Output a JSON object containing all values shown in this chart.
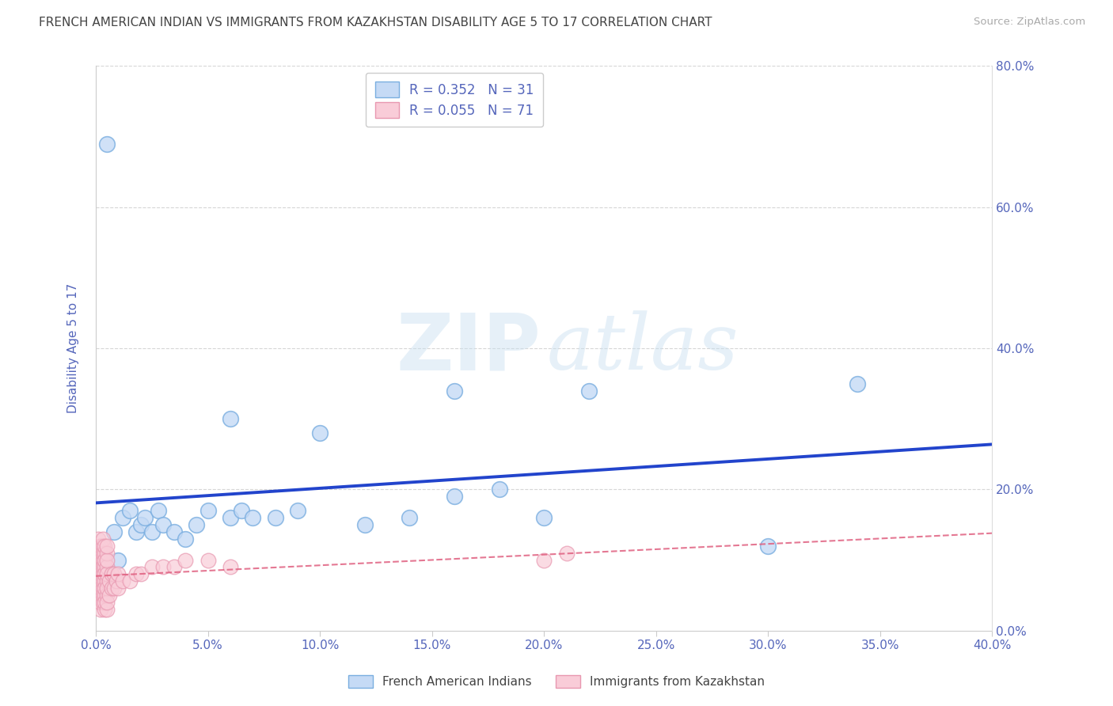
{
  "title": "FRENCH AMERICAN INDIAN VS IMMIGRANTS FROM KAZAKHSTAN DISABILITY AGE 5 TO 17 CORRELATION CHART",
  "source": "Source: ZipAtlas.com",
  "ylabel": "Disability Age 5 to 17",
  "xlim": [
    0.0,
    0.4
  ],
  "ylim": [
    0.0,
    0.8
  ],
  "xticks": [
    0.0,
    0.05,
    0.1,
    0.15,
    0.2,
    0.25,
    0.3,
    0.35,
    0.4
  ],
  "ytick_labels_right": [
    "0.0%",
    "20.0%",
    "40.0%",
    "60.0%",
    "80.0%"
  ],
  "ytick_vals": [
    0.0,
    0.2,
    0.4,
    0.6,
    0.8
  ],
  "blue_R": 0.352,
  "blue_N": 31,
  "pink_R": 0.055,
  "pink_N": 71,
  "blue_fill_color": "#c5daf5",
  "blue_edge_color": "#7aaee0",
  "blue_line_color": "#2244cc",
  "pink_fill_color": "#f9ccd8",
  "pink_edge_color": "#e898b0",
  "pink_line_color": "#e06080",
  "legend_label_blue": "French American Indians",
  "legend_label_pink": "Immigrants from Kazakhstan",
  "background_color": "#ffffff",
  "grid_color": "#cccccc",
  "title_color": "#444444",
  "axis_label_color": "#5566bb",
  "blue_scatter_x": [
    0.008,
    0.01,
    0.012,
    0.015,
    0.018,
    0.02,
    0.022,
    0.025,
    0.028,
    0.03,
    0.035,
    0.04,
    0.045,
    0.05,
    0.06,
    0.065,
    0.07,
    0.08,
    0.09,
    0.1,
    0.12,
    0.14,
    0.16,
    0.18,
    0.2,
    0.22,
    0.3,
    0.34,
    0.16,
    0.06,
    0.005
  ],
  "blue_scatter_y": [
    0.14,
    0.1,
    0.16,
    0.17,
    0.14,
    0.15,
    0.16,
    0.14,
    0.17,
    0.15,
    0.14,
    0.13,
    0.15,
    0.17,
    0.16,
    0.17,
    0.16,
    0.16,
    0.17,
    0.28,
    0.15,
    0.16,
    0.19,
    0.2,
    0.16,
    0.34,
    0.12,
    0.35,
    0.34,
    0.3,
    0.69
  ],
  "pink_scatter_x": [
    0.001,
    0.001,
    0.001,
    0.001,
    0.001,
    0.001,
    0.001,
    0.001,
    0.001,
    0.001,
    0.002,
    0.002,
    0.002,
    0.002,
    0.002,
    0.002,
    0.002,
    0.002,
    0.002,
    0.002,
    0.003,
    0.003,
    0.003,
    0.003,
    0.003,
    0.003,
    0.003,
    0.003,
    0.003,
    0.003,
    0.004,
    0.004,
    0.004,
    0.004,
    0.004,
    0.004,
    0.004,
    0.004,
    0.004,
    0.004,
    0.005,
    0.005,
    0.005,
    0.005,
    0.005,
    0.005,
    0.005,
    0.005,
    0.005,
    0.005,
    0.006,
    0.006,
    0.007,
    0.007,
    0.008,
    0.008,
    0.009,
    0.01,
    0.01,
    0.012,
    0.015,
    0.018,
    0.02,
    0.025,
    0.03,
    0.035,
    0.04,
    0.05,
    0.06,
    0.2,
    0.21
  ],
  "pink_scatter_y": [
    0.04,
    0.06,
    0.08,
    0.1,
    0.12,
    0.05,
    0.07,
    0.09,
    0.11,
    0.13,
    0.03,
    0.05,
    0.07,
    0.09,
    0.11,
    0.04,
    0.06,
    0.08,
    0.1,
    0.12,
    0.04,
    0.06,
    0.08,
    0.1,
    0.12,
    0.05,
    0.07,
    0.09,
    0.11,
    0.13,
    0.03,
    0.05,
    0.07,
    0.09,
    0.11,
    0.04,
    0.06,
    0.08,
    0.1,
    0.12,
    0.03,
    0.05,
    0.07,
    0.09,
    0.11,
    0.04,
    0.06,
    0.08,
    0.1,
    0.12,
    0.05,
    0.07,
    0.06,
    0.08,
    0.06,
    0.08,
    0.07,
    0.06,
    0.08,
    0.07,
    0.07,
    0.08,
    0.08,
    0.09,
    0.09,
    0.09,
    0.1,
    0.1,
    0.09,
    0.1,
    0.11
  ]
}
